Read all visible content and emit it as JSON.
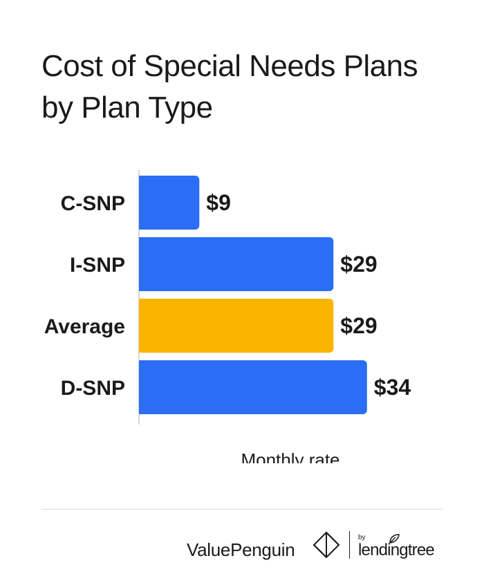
{
  "title": "Cost of Special Needs Plans by Plan Type",
  "chart_data": {
    "type": "bar",
    "orientation": "horizontal",
    "categories": [
      "C-SNP",
      "I-SNP",
      "Average",
      "D-SNP"
    ],
    "values": [
      9,
      29,
      29,
      34
    ],
    "value_labels": [
      "$9",
      "$29",
      "$29",
      "$34"
    ],
    "bar_colors": [
      "#2b6ef5",
      "#2b6ef5",
      "#fbb400",
      "#2b6ef5"
    ],
    "xlabel": "Monthly rate",
    "ylabel": "",
    "xlim": [
      0,
      40
    ],
    "grid": false,
    "legend": "none"
  },
  "colors": {
    "primary_bar": "#2b6ef5",
    "highlight_bar": "#fbb400",
    "text": "#1a1a1a"
  },
  "footer": {
    "brand": "ValuePenguin",
    "by_text": "by",
    "partner": "lendingtree",
    "brand_icon": "valuepenguin-logo-icon",
    "partner_icon": "leaf-icon"
  }
}
